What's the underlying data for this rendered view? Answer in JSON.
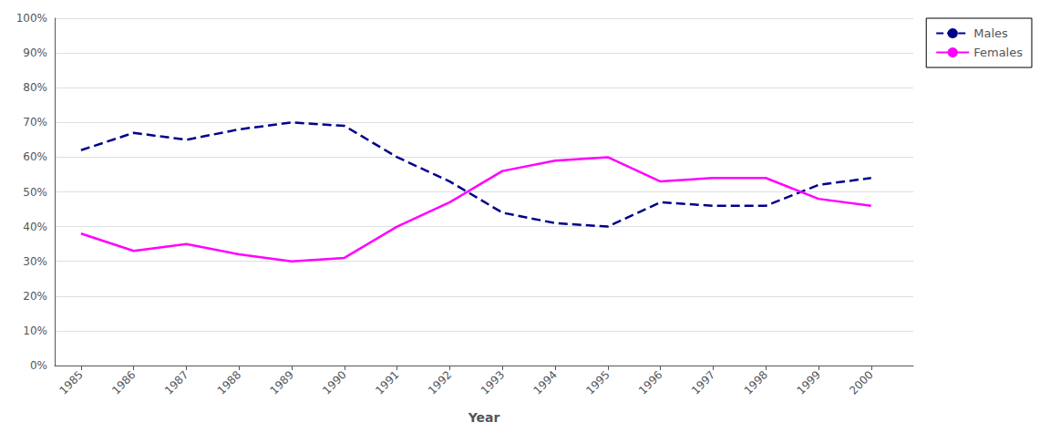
{
  "chart_data": {
    "type": "line",
    "x": [
      1985,
      1986,
      1987,
      1988,
      1989,
      1990,
      1991,
      1992,
      1993,
      1994,
      1995,
      1996,
      1997,
      1998,
      1999,
      2000
    ],
    "series": [
      {
        "name": "Males",
        "color": "#00008B",
        "line_style": "dashed",
        "values": [
          62,
          67,
          65,
          68,
          70,
          69,
          60,
          53,
          44,
          41,
          40,
          47,
          46,
          46,
          52,
          54
        ]
      },
      {
        "name": "Females",
        "color": "#FF00FF",
        "line_style": "solid",
        "values": [
          38,
          33,
          35,
          32,
          30,
          31,
          40,
          47,
          56,
          59,
          60,
          53,
          54,
          54,
          48,
          46
        ]
      }
    ],
    "xlabel": "Year",
    "xlim": [
      1984.5,
      2000.8
    ],
    "xticks": [
      1985,
      1986,
      1987,
      1988,
      1989,
      1990,
      1991,
      1992,
      1993,
      1994,
      1995,
      1996,
      1997,
      1998,
      1999,
      2000
    ],
    "ylim": [
      0,
      100
    ],
    "yticks": [
      {
        "value": 0,
        "label": "0%"
      },
      {
        "value": 10,
        "label": "10%"
      },
      {
        "value": 20,
        "label": "20%"
      },
      {
        "value": 30,
        "label": "30%"
      },
      {
        "value": 40,
        "label": "40%"
      },
      {
        "value": 50,
        "label": "50%"
      },
      {
        "value": 60,
        "label": "60%"
      },
      {
        "value": 70,
        "label": "70%"
      },
      {
        "value": 80,
        "label": "80%"
      },
      {
        "value": 90,
        "label": "90%"
      },
      {
        "value": 100,
        "label": "100%"
      }
    ],
    "grid": true,
    "legend": "right"
  }
}
